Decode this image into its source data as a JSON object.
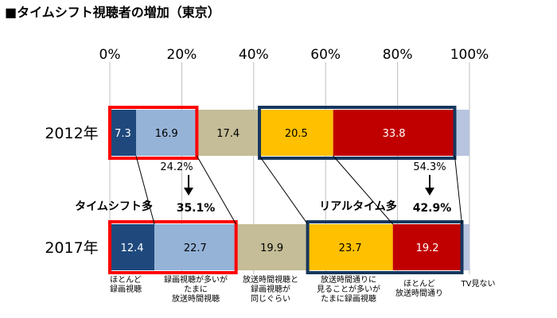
{
  "title": "■タイムシフト視聴者の増加（東京）",
  "chart_data": {
    "type": "bar",
    "orientation": "horizontal",
    "stacked": true,
    "percent_axis_ticks": [
      "0%",
      "20%",
      "40%",
      "60%",
      "80%",
      "100%"
    ],
    "xlim": [
      0,
      100
    ],
    "grid": true,
    "categories": [
      "2012年",
      "2017年"
    ],
    "series": [
      {
        "name": "ほとんど\n録画視聴",
        "color": "#1f497d",
        "label_color": "#ffffff",
        "values": [
          7.3,
          12.4
        ]
      },
      {
        "name": "録画視聴が多いが\nたまに\n放送時間視聴",
        "color": "#95b3d7",
        "label_color": "#000000",
        "values": [
          16.9,
          22.7
        ]
      },
      {
        "name": "放送時間視聴と\n録画視聴が\n同じぐらい",
        "color": "#c4bd97",
        "label_color": "#000000",
        "values": [
          17.4,
          19.9
        ]
      },
      {
        "name": "放送時間通りに\n見ることが多いが\nたまに録画視聴",
        "color": "#ffc000",
        "label_color": "#000000",
        "values": [
          20.5,
          23.7
        ]
      },
      {
        "name": "ほとんど\n放送時間通り",
        "color": "#c00000",
        "label_color": "#ffffff",
        "values": [
          33.8,
          19.2
        ]
      },
      {
        "name": "TV見ない",
        "color": "#b8c4e0",
        "label_color": "#000000",
        "values": [
          4.1,
          2.1
        ]
      }
    ],
    "annotations": {
      "timeshift_label": "タイムシフト多",
      "realtime_label": "リアルタイム多",
      "timeshift_2012": "24.2%",
      "timeshift_2017": "35.1%",
      "realtime_2012": "54.3%",
      "realtime_2017": "42.9%"
    },
    "colors": {
      "timeshift_box": "#ff0000",
      "realtime_box": "#17375e",
      "grid": "#bfbfbf"
    }
  }
}
